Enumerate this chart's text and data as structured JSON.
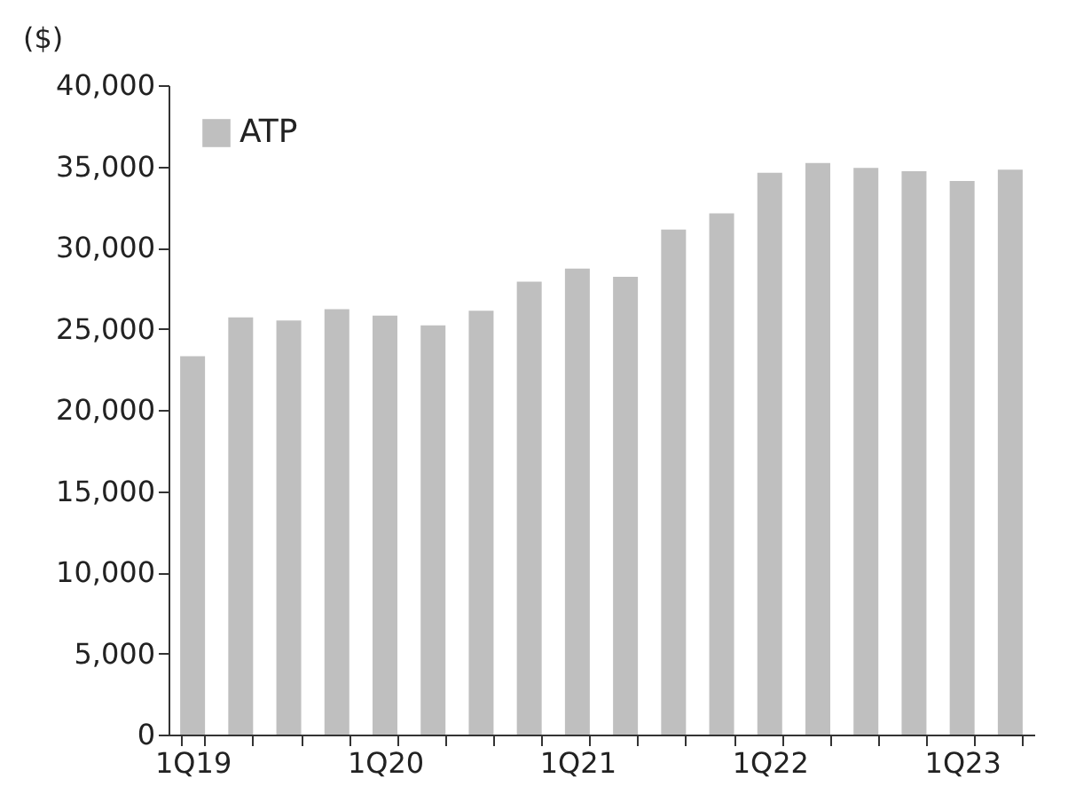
{
  "chart_data": {
    "type": "bar",
    "ylabel": "($)",
    "categories": [
      "1Q19",
      null,
      null,
      null,
      "1Q20",
      null,
      null,
      null,
      "1Q21",
      null,
      null,
      null,
      "1Q22",
      null,
      null,
      null,
      "1Q23",
      null
    ],
    "series": [
      {
        "name": "ATP",
        "color": "#bfbfbf",
        "values": [
          23300,
          25700,
          25500,
          26200,
          25800,
          25200,
          26100,
          27900,
          28700,
          28200,
          31100,
          32100,
          34600,
          35200,
          34900,
          34700,
          34100,
          34800
        ]
      }
    ],
    "ylim": [
      0,
      40000
    ],
    "yticks": [
      {
        "value": 0,
        "label": "0"
      },
      {
        "value": 5000,
        "label": "5,000"
      },
      {
        "value": 10000,
        "label": "10,000"
      },
      {
        "value": 15000,
        "label": "15,000"
      },
      {
        "value": 20000,
        "label": "20,000"
      },
      {
        "value": 25000,
        "label": "25,000"
      },
      {
        "value": 30000,
        "label": "30,000"
      },
      {
        "value": 35000,
        "label": "35,000"
      },
      {
        "value": 40000,
        "label": "40,000"
      }
    ],
    "grid": false,
    "legend": "top left"
  }
}
